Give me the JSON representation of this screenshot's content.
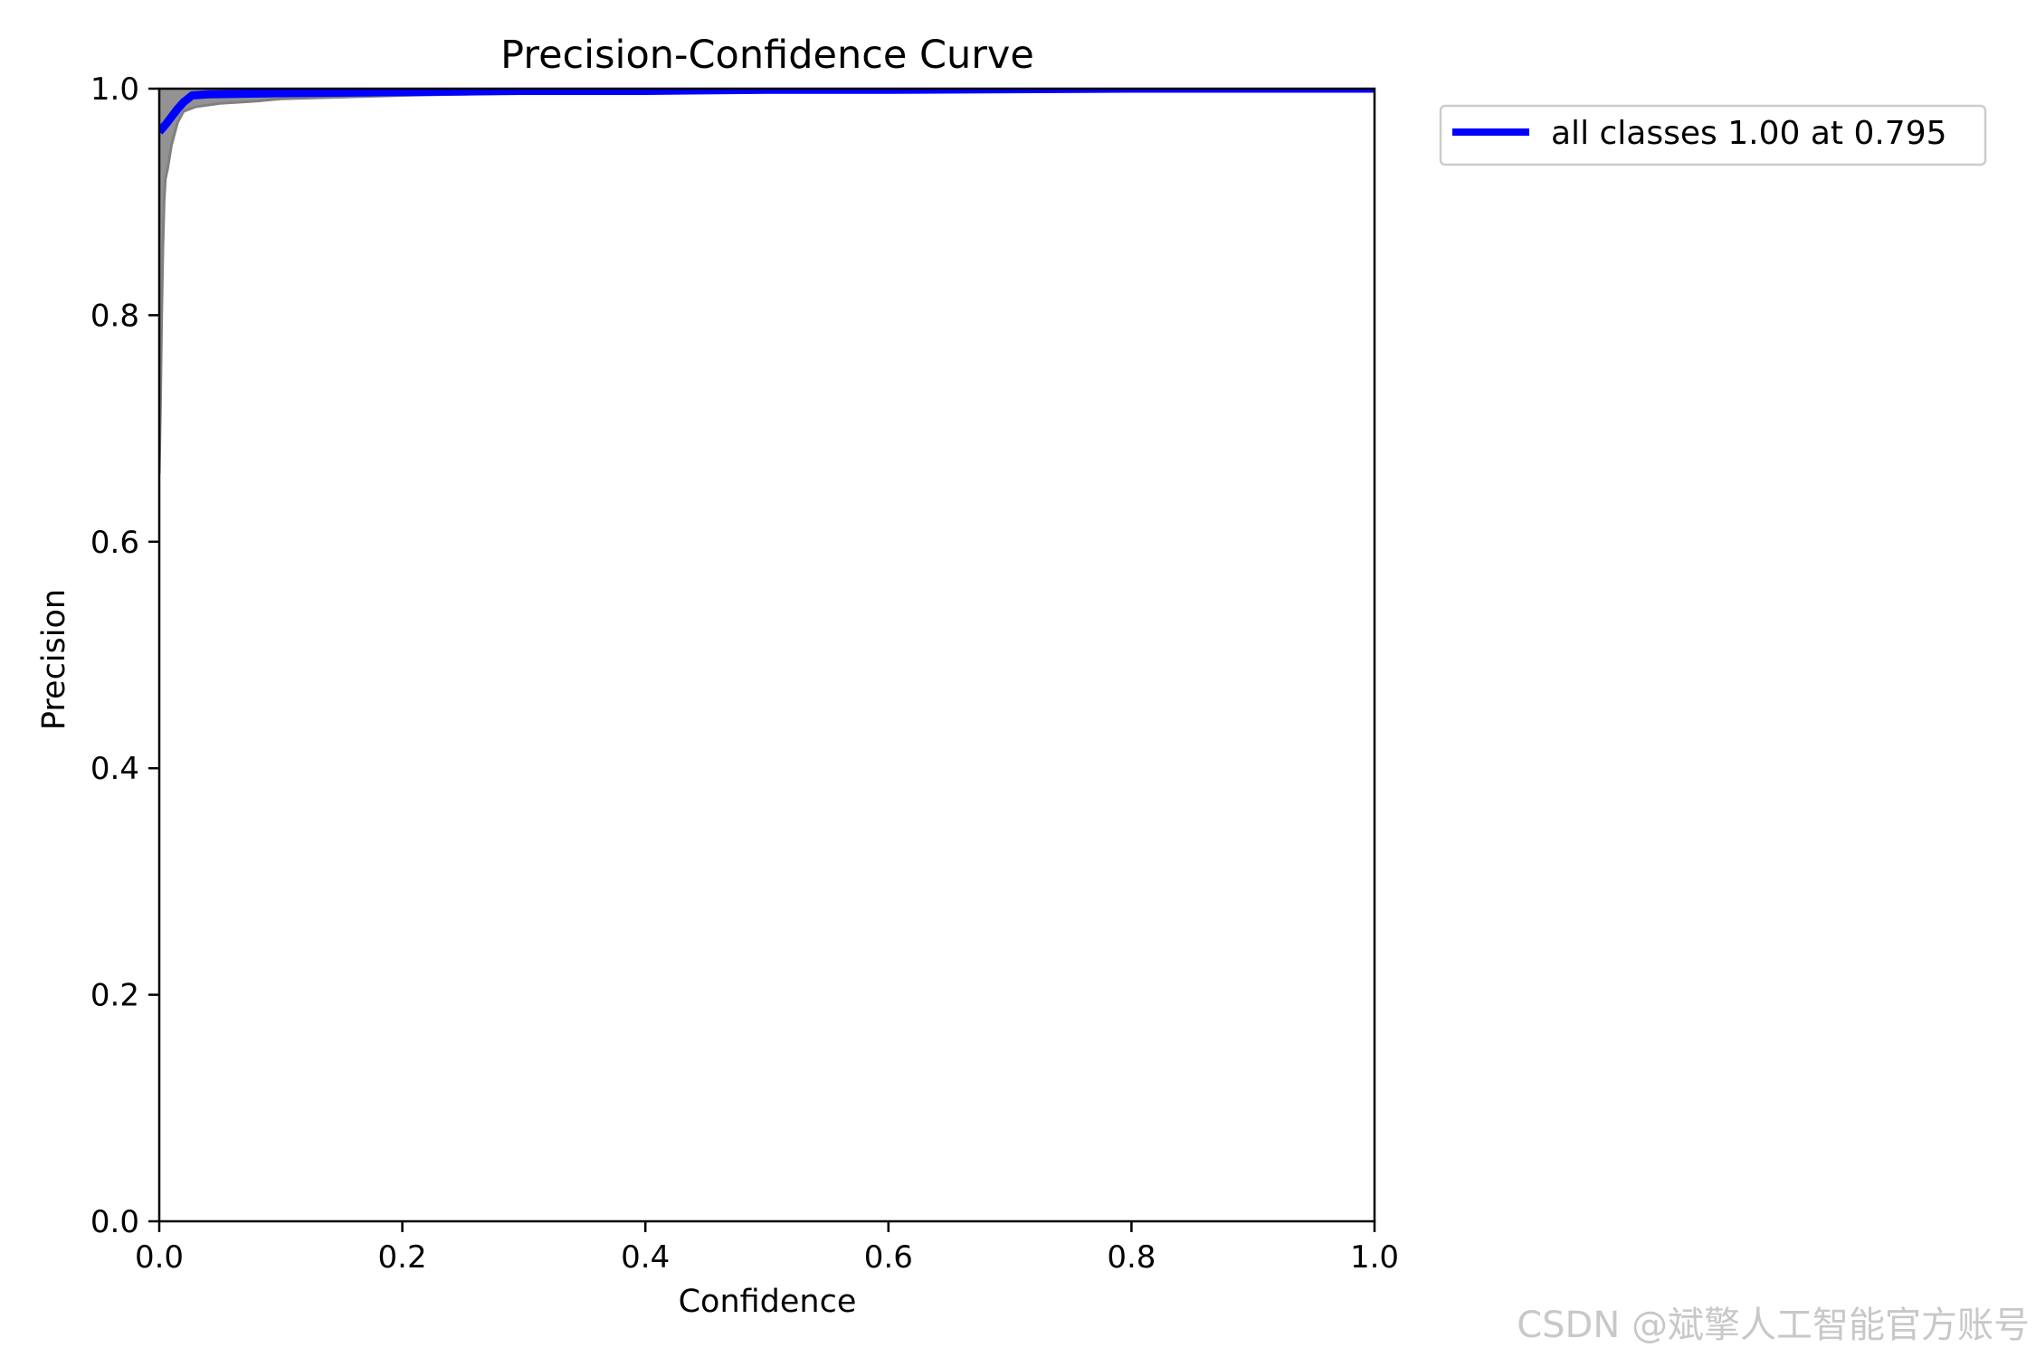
{
  "chart_data": {
    "type": "line",
    "title": "Precision-Confidence Curve",
    "xlabel": "Confidence",
    "ylabel": "Precision",
    "xlim": [
      0,
      1
    ],
    "ylim": [
      0,
      1
    ],
    "xticks": [
      "0.0",
      "0.2",
      "0.4",
      "0.6",
      "0.8",
      "1.0"
    ],
    "yticks": [
      "0.0",
      "0.2",
      "0.4",
      "0.6",
      "0.8",
      "1.0"
    ],
    "grid": false,
    "legend_position": "outside-top-right",
    "colors": {
      "main_series": "#0000ff",
      "class_curves": "#808080"
    },
    "series": [
      {
        "name": "all classes 1.00 at 0.795",
        "color": "#0000ff",
        "x": [
          0.0,
          0.005,
          0.01,
          0.015,
          0.02,
          0.027,
          0.04,
          0.07,
          0.1,
          0.2,
          0.3,
          0.4,
          0.5,
          0.6,
          0.7,
          0.795,
          0.9,
          1.0
        ],
        "y": [
          0.962,
          0.968,
          0.975,
          0.982,
          0.988,
          0.994,
          0.995,
          0.9955,
          0.996,
          0.997,
          0.998,
          0.998,
          0.999,
          0.999,
          0.9995,
          1.0,
          1.0,
          1.0
        ]
      }
    ],
    "class_curves": [
      {
        "x": [
          0.0,
          0.001,
          0.002,
          0.003,
          0.004,
          0.005,
          0.007,
          0.01,
          0.015,
          0.02,
          0.03,
          0.05,
          0.08,
          0.1,
          0.2,
          0.3,
          0.5,
          0.7,
          1.0
        ],
        "y": [
          0.66,
          0.72,
          0.8,
          0.86,
          0.9,
          0.92,
          0.93,
          0.95,
          0.97,
          0.98,
          0.984,
          0.987,
          0.989,
          0.991,
          0.994,
          0.996,
          0.998,
          0.999,
          1.0
        ]
      },
      {
        "x": [
          0.0,
          0.002,
          0.005,
          0.01,
          0.02,
          0.03,
          0.05,
          0.1,
          0.2,
          0.4,
          0.6,
          0.8,
          1.0
        ],
        "y": [
          1.0,
          1.0,
          1.0,
          1.0,
          1.0,
          1.0,
          1.0,
          1.0,
          1.0,
          1.0,
          1.0,
          1.0,
          1.0
        ]
      }
    ]
  },
  "watermark": "CSDN @斌擎人工智能官方账号"
}
